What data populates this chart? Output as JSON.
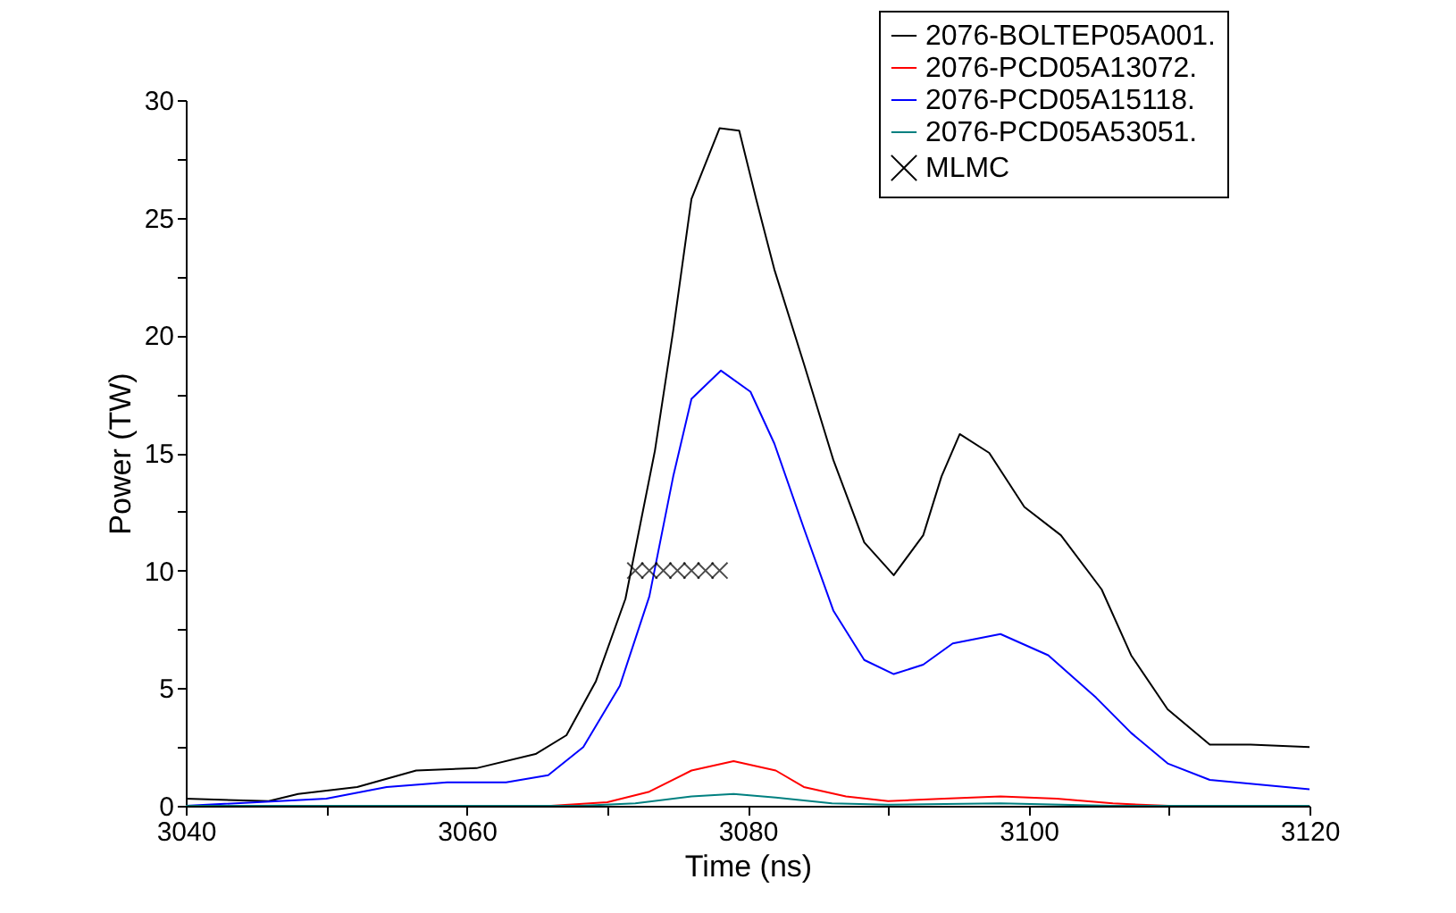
{
  "chart_data": {
    "type": "line",
    "xlabel": "Time (ns)",
    "ylabel": "Power (TW)",
    "xlim": [
      3040,
      3120
    ],
    "ylim": [
      0,
      30
    ],
    "xticks": [
      3040,
      {
        "value": 3050,
        "label": null
      },
      3060,
      {
        "value": 3070,
        "label": null
      },
      3080,
      {
        "value": 3090,
        "label": null
      },
      3100,
      {
        "value": 3110,
        "label": null
      },
      3120
    ],
    "yticks": [
      0,
      {
        "value": 2.5,
        "label": null
      },
      5,
      {
        "value": 7.5,
        "label": null
      },
      10,
      {
        "value": 12.5,
        "label": null
      },
      15,
      {
        "value": 17.5,
        "label": null
      },
      20,
      {
        "value": 22.5,
        "label": null
      },
      25,
      {
        "value": 27.5,
        "label": null
      },
      30
    ],
    "grid": false,
    "legend": "top right",
    "line_style": "solid",
    "series": [
      {
        "name": "2076-BOLTEP05A001.",
        "color": "#000000",
        "x": [
          3040,
          3045.9,
          3048,
          3052.2,
          3056.4,
          3060.7,
          3064.9,
          3067.1,
          3069.2,
          3071.3,
          3073.4,
          3074.7,
          3076,
          3078,
          3079.4,
          3080.6,
          3081.9,
          3084,
          3086.1,
          3088.3,
          3090.4,
          3092.5,
          3093.8,
          3095.1,
          3097.2,
          3099.7,
          3102.3,
          3105.2,
          3107.3,
          3109.9,
          3112.9,
          3115.8,
          3120
        ],
        "values": [
          0.3,
          0.2,
          0.5,
          0.8,
          1.5,
          1.6,
          2.2,
          3.0,
          5.3,
          8.8,
          15.1,
          20.2,
          25.8,
          28.8,
          28.7,
          25.8,
          22.8,
          18.8,
          14.7,
          11.2,
          9.8,
          11.5,
          14.0,
          15.8,
          15.0,
          12.7,
          11.5,
          9.2,
          6.4,
          4.1,
          2.6,
          2.6,
          2.5
        ]
      },
      {
        "name": "2076-PCD05A13072.",
        "color": "#ff0000",
        "x": [
          3040,
          3066,
          3070,
          3073,
          3076,
          3079,
          3082,
          3084,
          3087,
          3090,
          3094,
          3098,
          3102,
          3106,
          3110,
          3120
        ],
        "values": [
          0,
          0,
          0.15,
          0.6,
          1.5,
          1.9,
          1.5,
          0.8,
          0.4,
          0.2,
          0.3,
          0.4,
          0.3,
          0.1,
          0,
          0
        ]
      },
      {
        "name": "2076-PCD05A15118.",
        "color": "#0000ff",
        "x": [
          3040,
          3050,
          3054.3,
          3058.6,
          3062.8,
          3065.8,
          3068.3,
          3070.9,
          3073,
          3074.7,
          3076,
          3078.1,
          3080.2,
          3081.9,
          3084,
          3086.1,
          3088.3,
          3090.4,
          3092.5,
          3094.6,
          3098,
          3101.4,
          3104.8,
          3107.3,
          3109.9,
          3112.9,
          3120
        ],
        "values": [
          0,
          0.3,
          0.8,
          1.0,
          1.0,
          1.3,
          2.5,
          5.1,
          8.9,
          14,
          17.3,
          18.5,
          17.6,
          15.4,
          11.8,
          8.3,
          6.2,
          5.6,
          6.0,
          6.9,
          7.3,
          6.4,
          4.6,
          3.1,
          1.8,
          1.1,
          0.7
        ]
      },
      {
        "name": "2076-PCD05A53051.",
        "color": "#008080",
        "x": [
          3040,
          3068,
          3072,
          3076,
          3079,
          3082,
          3086,
          3090,
          3098,
          3106,
          3120
        ],
        "values": [
          0,
          0,
          0.1,
          0.4,
          0.5,
          0.35,
          0.1,
          0.05,
          0.1,
          0,
          0
        ]
      },
      {
        "name": "MLMC",
        "type": "scatter",
        "marker": "cross",
        "color": "#000000",
        "x": [
          3072,
          3073,
          3074,
          3075,
          3076,
          3077,
          3078
        ],
        "values": [
          10,
          10,
          10,
          10,
          10,
          10,
          10
        ]
      }
    ]
  }
}
